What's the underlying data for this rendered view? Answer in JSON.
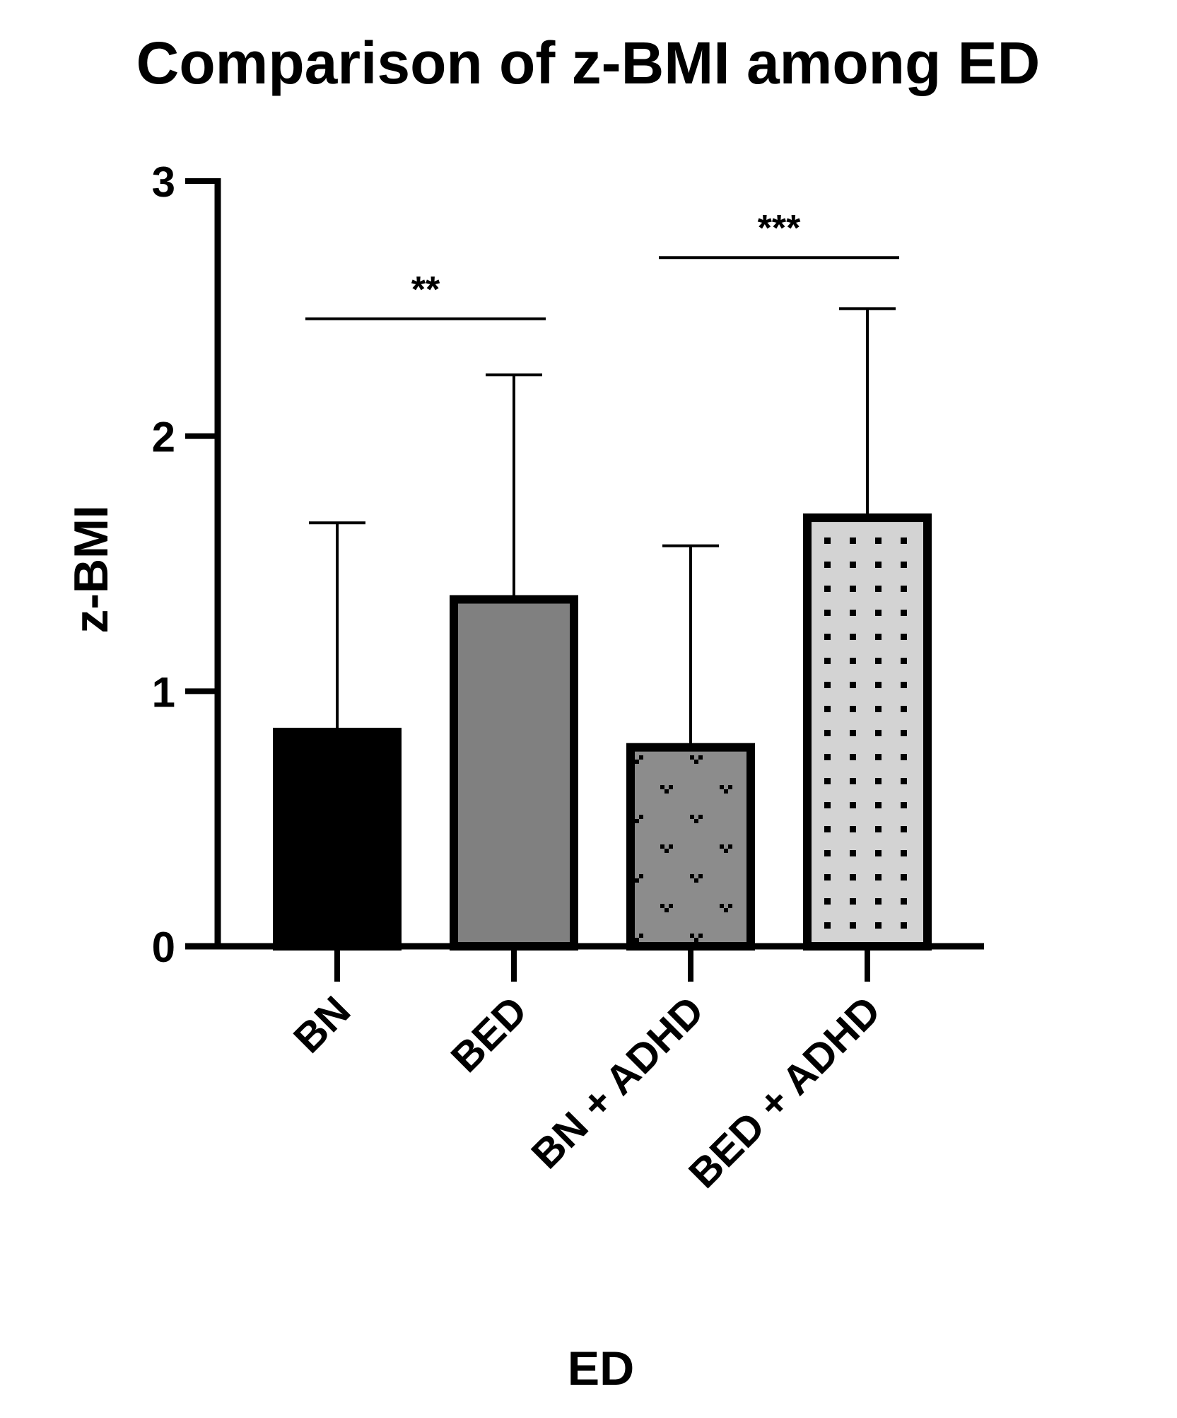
{
  "chart_data": {
    "type": "bar",
    "title": "Comparison of z-BMI among ED",
    "xlabel": "ED",
    "ylabel": "z-BMI",
    "ylim": [
      0,
      3
    ],
    "yticks": [
      0,
      1,
      2,
      3
    ],
    "grid": false,
    "categories": [
      "BN",
      "BED",
      "BN + ADHD",
      "BED + ADHD"
    ],
    "values": [
      0.84,
      1.36,
      0.78,
      1.68
    ],
    "error_upper": [
      1.66,
      2.24,
      1.57,
      2.5
    ],
    "bar_fills": [
      "#000000",
      "#808080",
      "#8c8c8c",
      "#d3d3d3"
    ],
    "bar_patterns": [
      "solid",
      "solid",
      "heart",
      "dots"
    ],
    "significance": [
      {
        "from": 0,
        "to": 1,
        "label": "**",
        "y": 2.46
      },
      {
        "from": 2,
        "to": 3,
        "label": "***",
        "y": 2.7
      }
    ]
  }
}
